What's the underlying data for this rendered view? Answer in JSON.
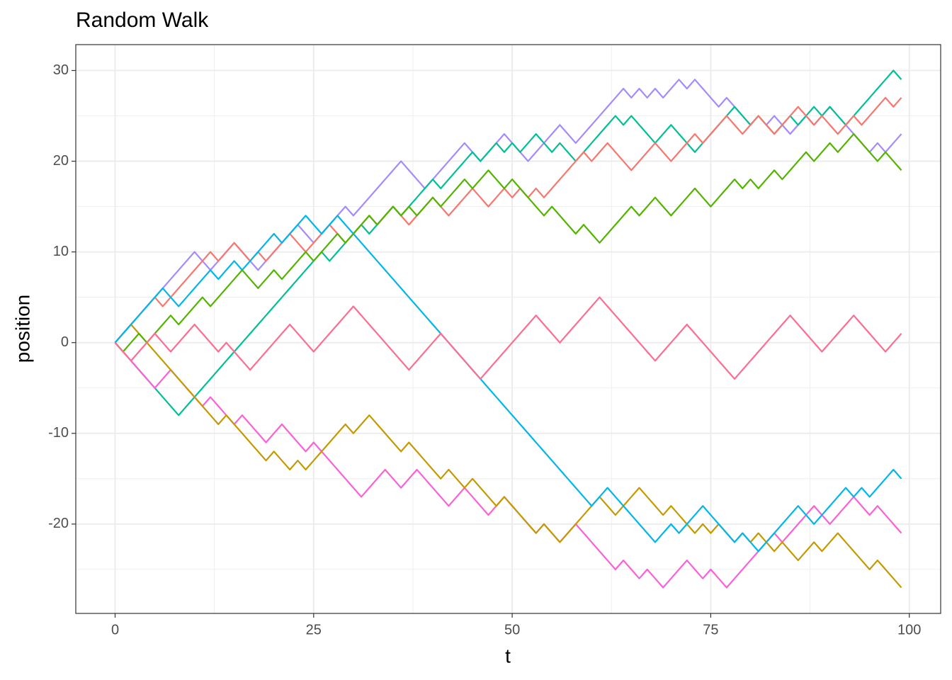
{
  "chart_data": {
    "type": "line",
    "title": "Random Walk",
    "x_label": "t",
    "y_label": "position",
    "xlim": [
      -4.95,
      103.95
    ],
    "ylim": [
      -29.85,
      32.85
    ],
    "xticks": [
      0,
      25,
      50,
      75,
      100
    ],
    "yticks": [
      -20,
      -10,
      0,
      10,
      20,
      30
    ],
    "x_minor_ticks": [
      12.5,
      37.5,
      62.5,
      87.5
    ],
    "y_minor_ticks": [
      -25,
      -15,
      -5,
      5,
      15,
      25
    ],
    "grid": true,
    "x": [
      0,
      1,
      2,
      3,
      4,
      5,
      6,
      7,
      8,
      9,
      10,
      11,
      12,
      13,
      14,
      15,
      16,
      17,
      18,
      19,
      20,
      21,
      22,
      23,
      24,
      25,
      26,
      27,
      28,
      29,
      30,
      31,
      32,
      33,
      34,
      35,
      36,
      37,
      38,
      39,
      40,
      41,
      42,
      43,
      44,
      45,
      46,
      47,
      48,
      49,
      50,
      51,
      52,
      53,
      54,
      55,
      56,
      57,
      58,
      59,
      60,
      61,
      62,
      63,
      64,
      65,
      66,
      67,
      68,
      69,
      70,
      71,
      72,
      73,
      74,
      75,
      76,
      77,
      78,
      79,
      80,
      81,
      82,
      83,
      84,
      85,
      86,
      87,
      88,
      89,
      90,
      91,
      92,
      93,
      94,
      95,
      96,
      97,
      98,
      99
    ],
    "series": [
      {
        "color": "#A58AFF",
        "values": [
          0,
          1,
          2,
          3,
          4,
          5,
          6,
          7,
          8,
          9,
          10,
          9,
          8,
          9,
          10,
          11,
          10,
          9,
          8,
          9,
          10,
          11,
          12,
          13,
          12,
          11,
          12,
          13,
          14,
          15,
          14,
          15,
          16,
          17,
          18,
          19,
          20,
          19,
          18,
          17,
          18,
          19,
          20,
          21,
          22,
          21,
          20,
          21,
          22,
          23,
          22,
          21,
          20,
          21,
          22,
          23,
          24,
          23,
          22,
          23,
          24,
          25,
          26,
          27,
          28,
          27,
          28,
          27,
          28,
          27,
          28,
          29,
          28,
          29,
          28,
          27,
          26,
          27,
          26,
          25,
          24,
          25,
          24,
          25,
          24,
          23,
          24,
          25,
          24,
          25,
          26,
          25,
          24,
          23,
          22,
          21,
          22,
          21,
          22,
          23
        ]
      },
      {
        "color": "#00C094",
        "values": [
          0,
          -1,
          -2,
          -3,
          -4,
          -5,
          -6,
          -7,
          -8,
          -7,
          -6,
          -5,
          -4,
          -3,
          -2,
          -1,
          0,
          1,
          2,
          3,
          4,
          5,
          6,
          7,
          8,
          9,
          10,
          9,
          10,
          11,
          12,
          13,
          12,
          13,
          14,
          15,
          14,
          15,
          16,
          17,
          18,
          17,
          18,
          19,
          20,
          21,
          20,
          21,
          22,
          21,
          22,
          21,
          22,
          23,
          22,
          21,
          22,
          21,
          20,
          21,
          22,
          23,
          24,
          25,
          24,
          25,
          24,
          23,
          22,
          23,
          24,
          23,
          22,
          21,
          22,
          23,
          24,
          25,
          26,
          25,
          24,
          25,
          24,
          23,
          24,
          25,
          24,
          25,
          26,
          25,
          26,
          25,
          24,
          25,
          26,
          27,
          28,
          29,
          30,
          29
        ]
      },
      {
        "color": "#FB61D7",
        "values": [
          0,
          -1,
          -2,
          -3,
          -4,
          -5,
          -4,
          -3,
          -4,
          -5,
          -6,
          -7,
          -6,
          -7,
          -8,
          -9,
          -8,
          -9,
          -10,
          -11,
          -10,
          -9,
          -10,
          -11,
          -12,
          -11,
          -12,
          -13,
          -14,
          -15,
          -16,
          -17,
          -16,
          -15,
          -14,
          -15,
          -16,
          -15,
          -14,
          -15,
          -16,
          -17,
          -18,
          -17,
          -16,
          -17,
          -18,
          -19,
          -18,
          -17,
          -18,
          -19,
          -20,
          -21,
          -20,
          -21,
          -22,
          -21,
          -20,
          -21,
          -22,
          -23,
          -24,
          -25,
          -24,
          -25,
          -26,
          -25,
          -26,
          -27,
          -26,
          -25,
          -24,
          -25,
          -26,
          -25,
          -26,
          -27,
          -26,
          -25,
          -24,
          -23,
          -22,
          -21,
          -22,
          -21,
          -20,
          -19,
          -18,
          -19,
          -20,
          -19,
          -18,
          -17,
          -18,
          -19,
          -18,
          -19,
          -20,
          -21
        ]
      },
      {
        "color": "#C49A00",
        "values": [
          0,
          1,
          2,
          1,
          0,
          -1,
          -2,
          -3,
          -4,
          -5,
          -6,
          -7,
          -8,
          -9,
          -8,
          -9,
          -10,
          -11,
          -12,
          -13,
          -12,
          -13,
          -14,
          -13,
          -14,
          -13,
          -12,
          -11,
          -10,
          -9,
          -10,
          -9,
          -8,
          -9,
          -10,
          -11,
          -12,
          -11,
          -12,
          -13,
          -14,
          -15,
          -14,
          -15,
          -16,
          -15,
          -16,
          -17,
          -18,
          -17,
          -18,
          -19,
          -20,
          -21,
          -20,
          -21,
          -22,
          -21,
          -20,
          -19,
          -18,
          -17,
          -18,
          -19,
          -18,
          -17,
          -16,
          -17,
          -18,
          -19,
          -18,
          -19,
          -20,
          -21,
          -20,
          -21,
          -20,
          -21,
          -22,
          -21,
          -22,
          -21,
          -22,
          -23,
          -22,
          -23,
          -24,
          -23,
          -22,
          -23,
          -22,
          -21,
          -22,
          -23,
          -24,
          -25,
          -24,
          -25,
          -26,
          -27
        ]
      },
      {
        "color": "#F8766D",
        "values": [
          0,
          1,
          2,
          3,
          4,
          5,
          4,
          5,
          6,
          7,
          8,
          9,
          10,
          9,
          10,
          11,
          10,
          9,
          10,
          9,
          10,
          11,
          12,
          11,
          10,
          11,
          12,
          13,
          12,
          11,
          12,
          13,
          14,
          13,
          14,
          15,
          14,
          13,
          14,
          15,
          16,
          15,
          14,
          15,
          16,
          17,
          16,
          15,
          16,
          17,
          16,
          17,
          16,
          17,
          16,
          17,
          18,
          19,
          20,
          21,
          20,
          21,
          22,
          21,
          20,
          19,
          20,
          21,
          22,
          21,
          20,
          21,
          22,
          23,
          22,
          23,
          24,
          25,
          24,
          23,
          24,
          25,
          24,
          23,
          24,
          25,
          26,
          25,
          24,
          25,
          24,
          23,
          24,
          25,
          24,
          25,
          26,
          27,
          26,
          27
        ]
      },
      {
        "color": "#00B6EB",
        "values": [
          0,
          1,
          2,
          3,
          4,
          5,
          6,
          5,
          4,
          5,
          6,
          7,
          8,
          7,
          8,
          9,
          8,
          9,
          10,
          11,
          12,
          11,
          12,
          13,
          14,
          13,
          12,
          13,
          14,
          13,
          12,
          11,
          10,
          9,
          8,
          7,
          6,
          5,
          4,
          3,
          2,
          1,
          0,
          -1,
          -2,
          -3,
          -4,
          -5,
          -6,
          -7,
          -8,
          -9,
          -10,
          -11,
          -12,
          -13,
          -14,
          -15,
          -16,
          -17,
          -18,
          -17,
          -16,
          -17,
          -18,
          -19,
          -20,
          -21,
          -22,
          -21,
          -20,
          -21,
          -20,
          -19,
          -18,
          -19,
          -20,
          -21,
          -22,
          -21,
          -22,
          -23,
          -22,
          -21,
          -20,
          -19,
          -18,
          -19,
          -20,
          -19,
          -18,
          -17,
          -16,
          -17,
          -16,
          -17,
          -16,
          -15,
          -14,
          -15
        ]
      },
      {
        "color": "#53B400",
        "values": [
          0,
          -1,
          0,
          1,
          0,
          1,
          2,
          3,
          2,
          3,
          4,
          5,
          4,
          5,
          6,
          7,
          8,
          7,
          6,
          7,
          8,
          7,
          8,
          9,
          10,
          9,
          10,
          11,
          12,
          11,
          12,
          13,
          14,
          13,
          14,
          15,
          14,
          15,
          14,
          15,
          16,
          15,
          16,
          17,
          18,
          17,
          18,
          19,
          18,
          17,
          18,
          17,
          16,
          15,
          14,
          15,
          14,
          13,
          12,
          13,
          12,
          11,
          12,
          13,
          14,
          15,
          14,
          15,
          16,
          15,
          14,
          15,
          16,
          17,
          16,
          15,
          16,
          17,
          18,
          17,
          18,
          17,
          18,
          19,
          18,
          19,
          20,
          21,
          20,
          21,
          22,
          21,
          22,
          23,
          22,
          21,
          20,
          21,
          20,
          19
        ]
      },
      {
        "color": "#FF6C91",
        "values": [
          0,
          -1,
          -2,
          -1,
          0,
          1,
          0,
          -1,
          0,
          1,
          2,
          1,
          0,
          -1,
          0,
          -1,
          -2,
          -3,
          -2,
          -1,
          0,
          1,
          2,
          1,
          0,
          -1,
          0,
          1,
          2,
          3,
          4,
          3,
          2,
          1,
          0,
          -1,
          -2,
          -3,
          -2,
          -1,
          0,
          1,
          0,
          -1,
          -2,
          -3,
          -4,
          -3,
          -2,
          -1,
          0,
          1,
          2,
          3,
          2,
          1,
          0,
          1,
          2,
          3,
          4,
          5,
          4,
          3,
          2,
          1,
          0,
          -1,
          -2,
          -1,
          0,
          1,
          2,
          1,
          0,
          -1,
          -2,
          -3,
          -4,
          -3,
          -2,
          -1,
          0,
          1,
          2,
          3,
          2,
          1,
          0,
          -1,
          0,
          1,
          2,
          3,
          2,
          1,
          0,
          -1,
          0,
          1
        ]
      }
    ]
  }
}
